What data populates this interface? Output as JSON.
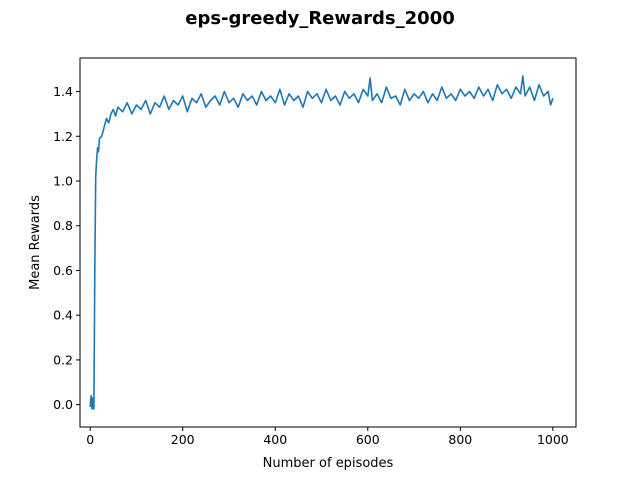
{
  "chart_data": {
    "type": "line",
    "title": "eps-greedy_Rewards_2000",
    "xlabel": "Number of episodes",
    "ylabel": "Mean Rewards",
    "xlim": [
      -22,
      1050
    ],
    "ylim": [
      -0.1,
      1.55
    ],
    "xticks": [
      0,
      200,
      400,
      600,
      800,
      1000
    ],
    "yticks": [
      0.0,
      0.2,
      0.4,
      0.6,
      0.8,
      1.0,
      1.2,
      1.4
    ],
    "xtick_labels": [
      "0",
      "200",
      "400",
      "600",
      "800",
      "1000"
    ],
    "ytick_labels": [
      "0.0",
      "0.2",
      "0.4",
      "0.6",
      "0.8",
      "1.0",
      "1.2",
      "1.4"
    ],
    "grid": false,
    "legend": "none",
    "series_color": "#1f77b4",
    "series": [
      {
        "x": [
          0,
          2,
          4,
          6,
          8,
          10,
          12,
          14,
          16,
          18,
          20,
          25,
          30,
          35,
          40,
          45,
          50,
          55,
          60,
          70,
          80,
          90,
          100,
          110,
          120,
          130,
          140,
          150,
          160,
          170,
          180,
          190,
          200,
          210,
          220,
          230,
          240,
          250,
          260,
          270,
          280,
          290,
          300,
          310,
          320,
          330,
          340,
          350,
          360,
          370,
          380,
          390,
          400,
          410,
          420,
          430,
          440,
          450,
          460,
          470,
          480,
          490,
          500,
          510,
          520,
          530,
          540,
          550,
          560,
          570,
          580,
          590,
          600,
          605,
          610,
          620,
          630,
          640,
          650,
          660,
          670,
          680,
          690,
          700,
          710,
          720,
          730,
          740,
          750,
          760,
          770,
          780,
          790,
          800,
          810,
          820,
          830,
          840,
          850,
          860,
          870,
          880,
          890,
          900,
          910,
          920,
          930,
          935,
          940,
          950,
          960,
          970,
          980,
          990,
          995,
          1000
        ],
        "y": [
          -0.01,
          0.04,
          -0.02,
          0.03,
          -0.02,
          0.6,
          1.02,
          1.1,
          1.15,
          1.13,
          1.19,
          1.2,
          1.24,
          1.28,
          1.26,
          1.3,
          1.32,
          1.29,
          1.33,
          1.31,
          1.35,
          1.3,
          1.34,
          1.32,
          1.36,
          1.3,
          1.35,
          1.33,
          1.38,
          1.32,
          1.36,
          1.34,
          1.38,
          1.31,
          1.37,
          1.35,
          1.39,
          1.33,
          1.36,
          1.38,
          1.34,
          1.4,
          1.35,
          1.37,
          1.33,
          1.39,
          1.36,
          1.38,
          1.34,
          1.4,
          1.36,
          1.38,
          1.35,
          1.41,
          1.34,
          1.39,
          1.36,
          1.38,
          1.33,
          1.4,
          1.37,
          1.39,
          1.35,
          1.41,
          1.36,
          1.38,
          1.34,
          1.4,
          1.37,
          1.39,
          1.35,
          1.41,
          1.38,
          1.46,
          1.36,
          1.39,
          1.35,
          1.42,
          1.37,
          1.38,
          1.34,
          1.41,
          1.36,
          1.39,
          1.37,
          1.4,
          1.35,
          1.39,
          1.36,
          1.42,
          1.37,
          1.39,
          1.36,
          1.41,
          1.38,
          1.4,
          1.37,
          1.42,
          1.38,
          1.41,
          1.36,
          1.43,
          1.39,
          1.41,
          1.37,
          1.42,
          1.39,
          1.47,
          1.38,
          1.42,
          1.36,
          1.43,
          1.38,
          1.4,
          1.34,
          1.37
        ]
      }
    ]
  }
}
